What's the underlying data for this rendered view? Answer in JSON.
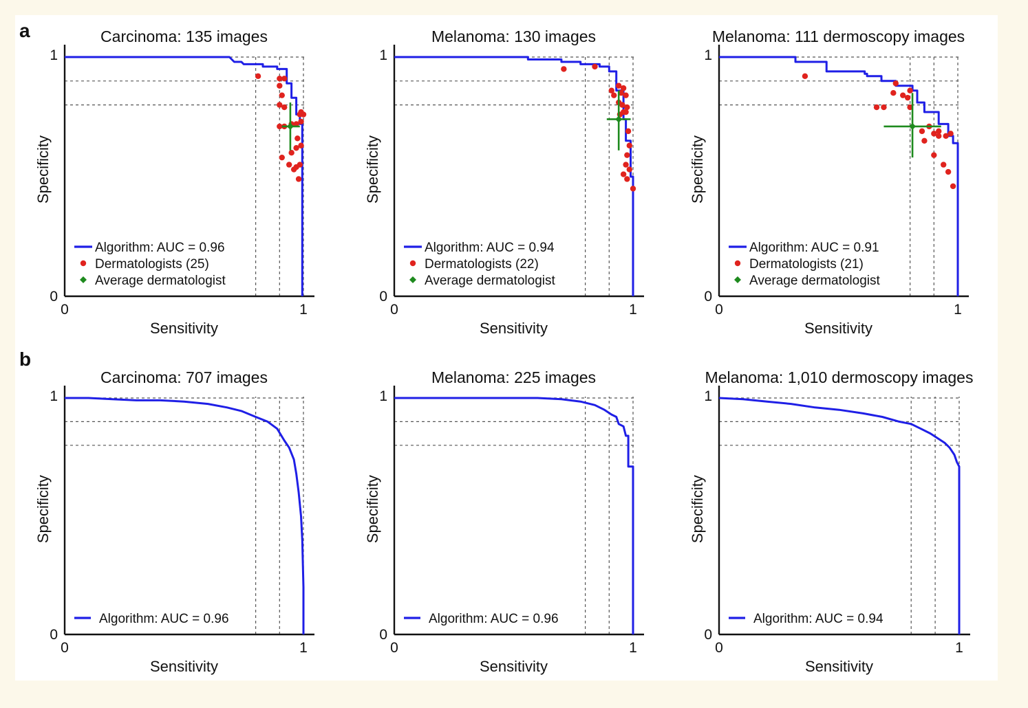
{
  "figure": {
    "panel_labels": [
      "a",
      "b"
    ]
  },
  "chart_data": [
    {
      "panel": "a",
      "type": "line",
      "title": "Carcinoma: 135 images",
      "xlabel": "Sensitivity",
      "ylabel": "Specificity",
      "xlim": [
        0,
        1
      ],
      "ylim": [
        0,
        1
      ],
      "x_ticks": [
        "0",
        "1"
      ],
      "y_ticks": [
        "0",
        "1"
      ],
      "grid": false,
      "guide_lines": {
        "sensitivity": [
          0.8,
          0.9,
          1.0
        ],
        "specificity": [
          0.8,
          0.9,
          1.0
        ]
      },
      "legend_position": "bottom-left",
      "series": [
        {
          "name": "Algorithm: AUC = 0.96",
          "kind": "roc",
          "color": "#1f1fe6",
          "points": [
            [
              0,
              1
            ],
            [
              0.69,
              1
            ],
            [
              0.71,
              0.98
            ],
            [
              0.74,
              0.98
            ],
            [
              0.75,
              0.97
            ],
            [
              0.83,
              0.97
            ],
            [
              0.83,
              0.96
            ],
            [
              0.89,
              0.96
            ],
            [
              0.89,
              0.95
            ],
            [
              0.93,
              0.95
            ],
            [
              0.93,
              0.89
            ],
            [
              0.95,
              0.89
            ],
            [
              0.95,
              0.83
            ],
            [
              0.97,
              0.83
            ],
            [
              0.97,
              0.76
            ],
            [
              0.985,
              0.76
            ],
            [
              0.985,
              0.72
            ],
            [
              0.995,
              0.72
            ],
            [
              0.995,
              0
            ]
          ]
        },
        {
          "name": "Dermatologists (25)",
          "kind": "points",
          "color": "#e0231e",
          "points": [
            [
              0.81,
              0.92
            ],
            [
              0.9,
              0.91
            ],
            [
              0.92,
              0.91
            ],
            [
              0.9,
              0.88
            ],
            [
              0.91,
              0.84
            ],
            [
              0.9,
              0.8
            ],
            [
              0.92,
              0.79
            ],
            [
              0.9,
              0.71
            ],
            [
              0.92,
              0.71
            ],
            [
              0.95,
              0.72
            ],
            [
              0.97,
              0.72
            ],
            [
              0.99,
              0.73
            ],
            [
              0.99,
              0.77
            ],
            [
              0.985,
              0.76
            ],
            [
              0.99,
              0.63
            ],
            [
              0.97,
              0.62
            ],
            [
              0.95,
              0.6
            ],
            [
              0.91,
              0.58
            ],
            [
              0.94,
              0.55
            ],
            [
              0.96,
              0.53
            ],
            [
              0.97,
              0.54
            ],
            [
              0.985,
              0.55
            ],
            [
              0.98,
              0.49
            ],
            [
              1.0,
              0.76
            ],
            [
              0.975,
              0.66
            ]
          ]
        },
        {
          "name": "Average dermatologist",
          "kind": "mean",
          "color": "#1e8a1e",
          "points": [
            [
              0.945,
              0.71
            ]
          ],
          "x_err": [
            0.91,
            0.985
          ],
          "y_err": [
            0.61,
            0.81
          ]
        }
      ]
    },
    {
      "panel": "a",
      "type": "line",
      "title": "Melanoma: 130 images",
      "xlabel": "Sensitivity",
      "ylabel": "Specificity",
      "xlim": [
        0,
        1
      ],
      "ylim": [
        0,
        1
      ],
      "x_ticks": [
        "0",
        "1"
      ],
      "y_ticks": [
        "0",
        "1"
      ],
      "grid": false,
      "guide_lines": {
        "sensitivity": [
          0.8,
          0.9,
          1.0
        ],
        "specificity": [
          0.8,
          0.9,
          1.0
        ]
      },
      "legend_position": "bottom-left",
      "series": [
        {
          "name": "Algorithm: AUC = 0.94",
          "kind": "roc",
          "color": "#1f1fe6",
          "points": [
            [
              0,
              1
            ],
            [
              0.56,
              1
            ],
            [
              0.56,
              0.99
            ],
            [
              0.7,
              0.99
            ],
            [
              0.7,
              0.98
            ],
            [
              0.78,
              0.98
            ],
            [
              0.78,
              0.97
            ],
            [
              0.86,
              0.97
            ],
            [
              0.86,
              0.96
            ],
            [
              0.9,
              0.96
            ],
            [
              0.9,
              0.94
            ],
            [
              0.93,
              0.94
            ],
            [
              0.93,
              0.86
            ],
            [
              0.96,
              0.86
            ],
            [
              0.96,
              0.74
            ],
            [
              0.97,
              0.74
            ],
            [
              0.97,
              0.65
            ],
            [
              0.99,
              0.65
            ],
            [
              0.99,
              0.5
            ],
            [
              1.0,
              0.5
            ],
            [
              1.0,
              0
            ]
          ]
        },
        {
          "name": "Dermatologists (22)",
          "kind": "points",
          "color": "#e0231e",
          "points": [
            [
              0.71,
              0.95
            ],
            [
              0.84,
              0.96
            ],
            [
              0.91,
              0.86
            ],
            [
              0.92,
              0.84
            ],
            [
              0.94,
              0.88
            ],
            [
              0.95,
              0.85
            ],
            [
              0.96,
              0.87
            ],
            [
              0.97,
              0.84
            ],
            [
              0.975,
              0.79
            ],
            [
              0.955,
              0.8
            ],
            [
              0.94,
              0.81
            ],
            [
              0.945,
              0.76
            ],
            [
              0.96,
              0.77
            ],
            [
              0.97,
              0.77
            ],
            [
              0.98,
              0.69
            ],
            [
              0.985,
              0.63
            ],
            [
              0.975,
              0.59
            ],
            [
              0.97,
              0.55
            ],
            [
              0.96,
              0.51
            ],
            [
              0.975,
              0.49
            ],
            [
              0.985,
              0.53
            ],
            [
              1.0,
              0.45
            ]
          ]
        },
        {
          "name": "Average dermatologist",
          "kind": "mean",
          "color": "#1e8a1e",
          "points": [
            [
              0.94,
              0.74
            ]
          ],
          "x_err": [
            0.89,
            0.99
          ],
          "y_err": [
            0.61,
            0.86
          ]
        }
      ]
    },
    {
      "panel": "a",
      "type": "line",
      "title": "Melanoma: 111 dermoscopy images",
      "xlabel": "Sensitivity",
      "ylabel": "Specificity",
      "xlim": [
        0,
        1
      ],
      "ylim": [
        0,
        1
      ],
      "x_ticks": [
        "0",
        "1"
      ],
      "y_ticks": [
        "0",
        "1"
      ],
      "grid": false,
      "guide_lines": {
        "sensitivity": [
          0.8,
          0.9,
          1.0
        ],
        "specificity": [
          0.8,
          0.9,
          1.0
        ]
      },
      "legend_position": "bottom-left",
      "series": [
        {
          "name": "Algorithm: AUC = 0.91",
          "kind": "roc",
          "color": "#1f1fe6",
          "points": [
            [
              0,
              1
            ],
            [
              0.32,
              1
            ],
            [
              0.32,
              0.98
            ],
            [
              0.45,
              0.98
            ],
            [
              0.45,
              0.94
            ],
            [
              0.61,
              0.94
            ],
            [
              0.61,
              0.93
            ],
            [
              0.62,
              0.93
            ],
            [
              0.62,
              0.92
            ],
            [
              0.68,
              0.92
            ],
            [
              0.68,
              0.9
            ],
            [
              0.74,
              0.9
            ],
            [
              0.74,
              0.88
            ],
            [
              0.81,
              0.88
            ],
            [
              0.81,
              0.86
            ],
            [
              0.83,
              0.86
            ],
            [
              0.83,
              0.81
            ],
            [
              0.86,
              0.81
            ],
            [
              0.86,
              0.77
            ],
            [
              0.92,
              0.77
            ],
            [
              0.92,
              0.72
            ],
            [
              0.96,
              0.72
            ],
            [
              0.96,
              0.67
            ],
            [
              0.98,
              0.67
            ],
            [
              0.98,
              0.64
            ],
            [
              1.0,
              0.64
            ],
            [
              1.0,
              0
            ]
          ]
        },
        {
          "name": "Dermatologists (21)",
          "kind": "points",
          "color": "#e0231e",
          "points": [
            [
              0.36,
              0.92
            ],
            [
              0.66,
              0.79
            ],
            [
              0.69,
              0.79
            ],
            [
              0.73,
              0.85
            ],
            [
              0.74,
              0.89
            ],
            [
              0.77,
              0.84
            ],
            [
              0.79,
              0.83
            ],
            [
              0.8,
              0.79
            ],
            [
              0.8,
              0.86
            ],
            [
              0.85,
              0.69
            ],
            [
              0.86,
              0.65
            ],
            [
              0.88,
              0.71
            ],
            [
              0.9,
              0.68
            ],
            [
              0.92,
              0.69
            ],
            [
              0.92,
              0.67
            ],
            [
              0.95,
              0.67
            ],
            [
              0.97,
              0.68
            ],
            [
              0.9,
              0.59
            ],
            [
              0.94,
              0.55
            ],
            [
              0.96,
              0.52
            ],
            [
              0.98,
              0.46
            ]
          ]
        },
        {
          "name": "Average dermatologist",
          "kind": "mean",
          "color": "#1e8a1e",
          "points": [
            [
              0.81,
              0.71
            ]
          ],
          "x_err": [
            0.69,
            0.93
          ],
          "y_err": [
            0.58,
            0.85
          ]
        }
      ]
    },
    {
      "panel": "b",
      "type": "line",
      "title": "Carcinoma: 707 images",
      "xlabel": "Sensitivity",
      "ylabel": "Specificity",
      "xlim": [
        0,
        1
      ],
      "ylim": [
        0,
        1
      ],
      "x_ticks": [
        "0",
        "1"
      ],
      "y_ticks": [
        "0",
        "1"
      ],
      "grid": false,
      "guide_lines": {
        "sensitivity": [
          0.8,
          0.9,
          1.0
        ],
        "specificity": [
          0.8,
          0.9,
          1.0
        ]
      },
      "legend_position": "bottom-left",
      "series": [
        {
          "name": "Algorithm: AUC = 0.96",
          "kind": "roc",
          "color": "#1f1fe6",
          "points": [
            [
              0,
              1
            ],
            [
              0.1,
              1
            ],
            [
              0.2,
              0.995
            ],
            [
              0.3,
              0.99
            ],
            [
              0.4,
              0.99
            ],
            [
              0.5,
              0.985
            ],
            [
              0.6,
              0.975
            ],
            [
              0.68,
              0.96
            ],
            [
              0.74,
              0.945
            ],
            [
              0.8,
              0.92
            ],
            [
              0.85,
              0.9
            ],
            [
              0.89,
              0.87
            ],
            [
              0.92,
              0.82
            ],
            [
              0.94,
              0.79
            ],
            [
              0.96,
              0.74
            ],
            [
              0.97,
              0.68
            ],
            [
              0.98,
              0.6
            ],
            [
              0.99,
              0.5
            ],
            [
              0.995,
              0.4
            ],
            [
              1.0,
              0.2
            ],
            [
              1.0,
              0
            ]
          ]
        }
      ]
    },
    {
      "panel": "b",
      "type": "line",
      "title": "Melanoma: 225 images",
      "xlabel": "Sensitivity",
      "ylabel": "Specificity",
      "xlim": [
        0,
        1
      ],
      "ylim": [
        0,
        1
      ],
      "x_ticks": [
        "0",
        "1"
      ],
      "y_ticks": [
        "0",
        "1"
      ],
      "grid": false,
      "guide_lines": {
        "sensitivity": [
          0.8,
          0.9,
          1.0
        ],
        "specificity": [
          0.8,
          0.9,
          1.0
        ]
      },
      "legend_position": "bottom-left",
      "series": [
        {
          "name": "Algorithm: AUC = 0.96",
          "kind": "roc",
          "color": "#1f1fe6",
          "points": [
            [
              0,
              1
            ],
            [
              0.6,
              1
            ],
            [
              0.7,
              0.995
            ],
            [
              0.78,
              0.985
            ],
            [
              0.84,
              0.97
            ],
            [
              0.88,
              0.95
            ],
            [
              0.91,
              0.93
            ],
            [
              0.93,
              0.92
            ],
            [
              0.94,
              0.89
            ],
            [
              0.96,
              0.88
            ],
            [
              0.97,
              0.84
            ],
            [
              0.98,
              0.84
            ],
            [
              0.98,
              0.71
            ],
            [
              1.0,
              0.71
            ],
            [
              1.0,
              0
            ]
          ]
        }
      ]
    },
    {
      "panel": "b",
      "type": "line",
      "title": "Melanoma: 1,010 dermoscopy images",
      "xlabel": "Sensitivity",
      "ylabel": "Specificity",
      "xlim": [
        0,
        1
      ],
      "ylim": [
        0,
        1
      ],
      "x_ticks": [
        "0",
        "1"
      ],
      "y_ticks": [
        "0",
        "1"
      ],
      "grid": false,
      "guide_lines": {
        "sensitivity": [
          0.8,
          0.9,
          1.0
        ],
        "specificity": [
          0.8,
          0.9,
          1.0
        ]
      },
      "legend_position": "bottom-left",
      "series": [
        {
          "name": "Algorithm: AUC = 0.94",
          "kind": "roc",
          "color": "#1f1fe6",
          "points": [
            [
              0,
              1
            ],
            [
              0.1,
              0.995
            ],
            [
              0.2,
              0.985
            ],
            [
              0.3,
              0.975
            ],
            [
              0.4,
              0.96
            ],
            [
              0.5,
              0.95
            ],
            [
              0.6,
              0.935
            ],
            [
              0.68,
              0.92
            ],
            [
              0.75,
              0.9
            ],
            [
              0.8,
              0.89
            ],
            [
              0.84,
              0.87
            ],
            [
              0.88,
              0.85
            ],
            [
              0.91,
              0.83
            ],
            [
              0.94,
              0.81
            ],
            [
              0.96,
              0.79
            ],
            [
              0.98,
              0.76
            ],
            [
              0.99,
              0.73
            ],
            [
              1.0,
              0.71
            ],
            [
              1.0,
              0
            ]
          ]
        }
      ]
    }
  ]
}
